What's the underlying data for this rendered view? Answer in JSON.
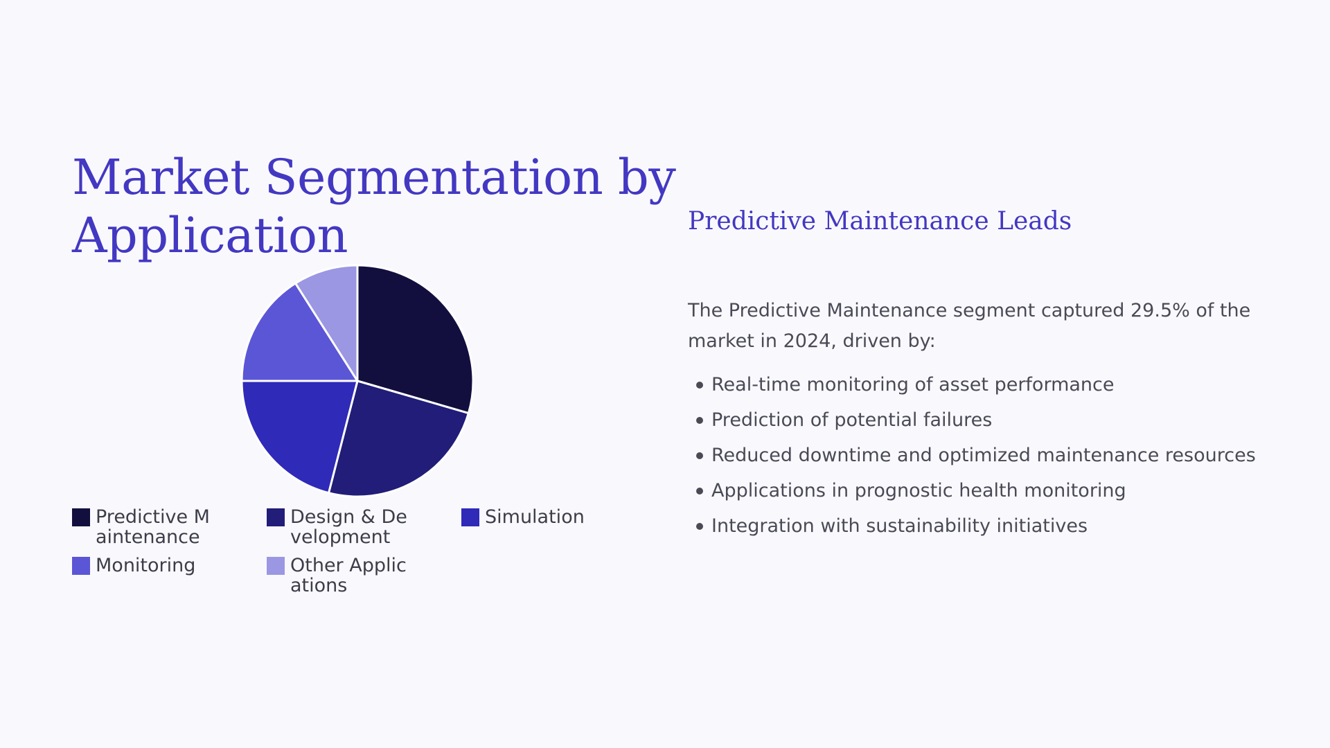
{
  "slide": {
    "title": "Market Segmentation by Application",
    "subtitle": "Predictive Maintenance Leads",
    "intro": "The Predictive Maintenance segment captured 29.5% of the market in 2024, driven by:",
    "bullets": [
      "Real-time monitoring of asset performance",
      "Prediction of potential failures",
      "Reduced downtime and optimized maintenance resources",
      "Applications in prognostic health monitoring",
      "Integration with sustainability initiatives"
    ]
  },
  "colors": {
    "accent": "#4338c2",
    "background": "#f9f9fd",
    "text": "#4a4a57"
  },
  "chart_data": {
    "type": "pie",
    "title": "",
    "legend_position": "bottom",
    "categories": [
      "Predictive Maintenance",
      "Design & Development",
      "Simulation",
      "Monitoring",
      "Other Applications"
    ],
    "values": [
      29.5,
      24.5,
      21,
      16,
      9
    ],
    "colors": [
      "#120f3f",
      "#211d78",
      "#2f2ab8",
      "#5b56d6",
      "#9b97e3"
    ]
  }
}
